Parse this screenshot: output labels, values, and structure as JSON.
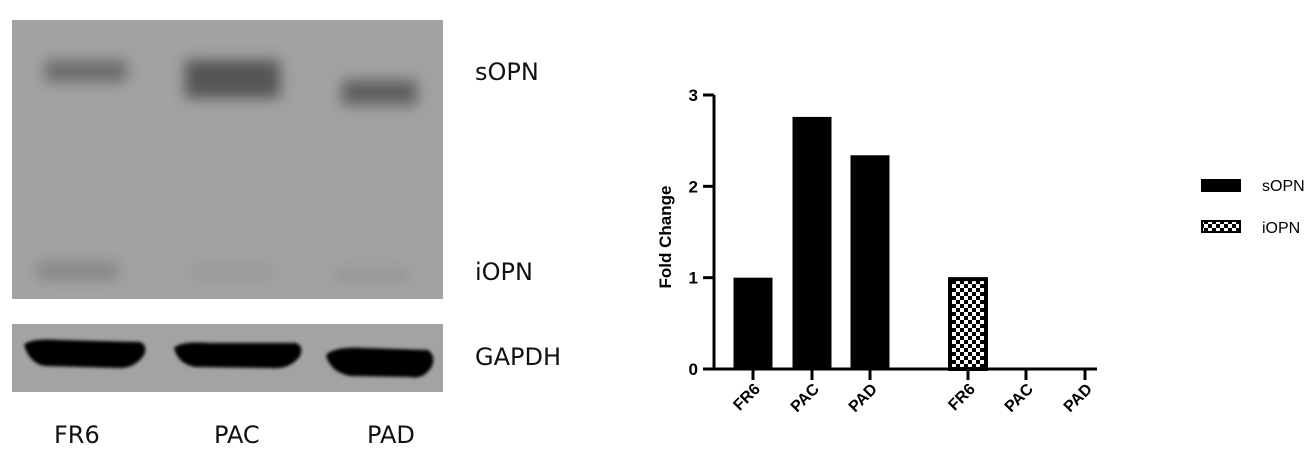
{
  "blot": {
    "bands": {
      "top": "sOPN",
      "middle": "iOPN",
      "loading": "GAPDH"
    },
    "lanes": [
      "FR6",
      "PAC",
      "PAD"
    ]
  },
  "chart_data": {
    "type": "bar",
    "ylabel": "Fold Change",
    "ylim": [
      0,
      3
    ],
    "yticks": [
      0,
      1,
      2,
      3
    ],
    "categories": [
      "FR6",
      "PAC",
      "PAD",
      "FR6",
      "PAC",
      "PAD"
    ],
    "series": [
      {
        "name": "sOPN",
        "pattern": "solid",
        "color": "#000000",
        "values": [
          1.0,
          2.76,
          2.34,
          null,
          null,
          null
        ]
      },
      {
        "name": "iOPN",
        "pattern": "checkerboard",
        "color": "#000000",
        "values": [
          null,
          null,
          null,
          1.0,
          0,
          0
        ]
      }
    ],
    "grid": false,
    "legend": "right"
  }
}
